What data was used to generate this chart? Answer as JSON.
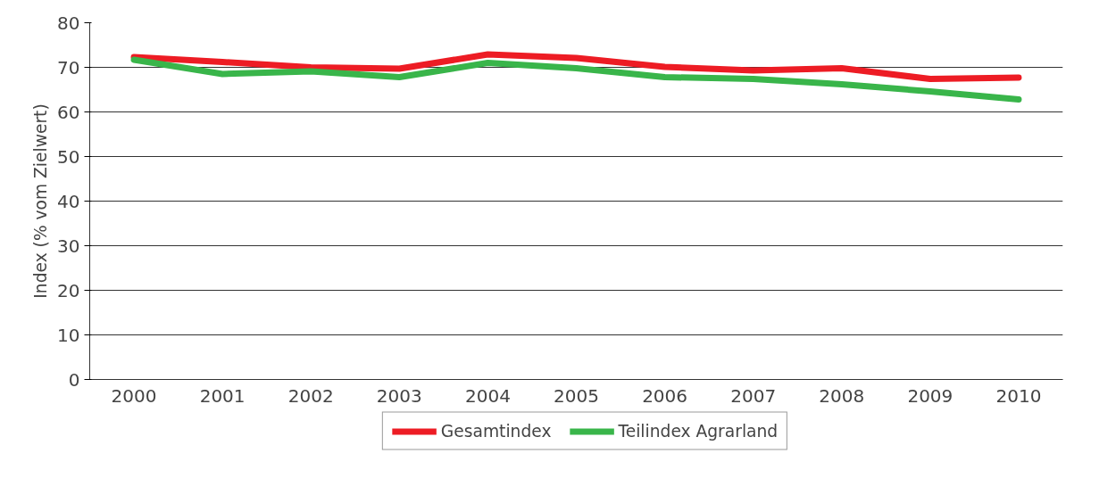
{
  "chart_data": {
    "type": "line",
    "ylabel": "Index (% vom Zielwert)",
    "categories": [
      "2000",
      "2001",
      "2002",
      "2003",
      "2004",
      "2005",
      "2006",
      "2007",
      "2008",
      "2009",
      "2010"
    ],
    "series": [
      {
        "name": "Gesamtindex",
        "color": "#ed1c24",
        "values": [
          72.3,
          71.2,
          70.0,
          69.7,
          72.9,
          72.1,
          70.1,
          69.3,
          69.8,
          67.4,
          67.7
        ]
      },
      {
        "name": "Teilindex Agrarland",
        "color": "#39b54a",
        "values": [
          71.7,
          68.5,
          69.1,
          67.8,
          71.0,
          69.8,
          67.8,
          67.4,
          66.2,
          64.6,
          62.8
        ]
      }
    ],
    "ylim": [
      0,
      80
    ],
    "yticks": [
      0,
      10,
      20,
      30,
      40,
      50,
      60,
      70,
      80
    ],
    "grid": "y",
    "legend": "bottom",
    "marker": "none",
    "line_style": "solid"
  }
}
